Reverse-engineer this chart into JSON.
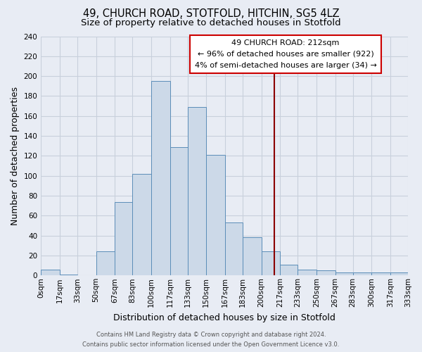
{
  "title": "49, CHURCH ROAD, STOTFOLD, HITCHIN, SG5 4LZ",
  "subtitle": "Size of property relative to detached houses in Stotfold",
  "xlabel": "Distribution of detached houses by size in Stotfold",
  "ylabel": "Number of detached properties",
  "bin_labels": [
    "0sqm",
    "17sqm",
    "33sqm",
    "50sqm",
    "67sqm",
    "83sqm",
    "100sqm",
    "117sqm",
    "133sqm",
    "150sqm",
    "167sqm",
    "183sqm",
    "200sqm",
    "217sqm",
    "233sqm",
    "250sqm",
    "267sqm",
    "283sqm",
    "300sqm",
    "317sqm",
    "333sqm"
  ],
  "bin_edges": [
    0,
    17,
    33,
    50,
    67,
    83,
    100,
    117,
    133,
    150,
    167,
    183,
    200,
    217,
    233,
    250,
    267,
    283,
    300,
    317,
    333
  ],
  "bar_heights": [
    6,
    1,
    0,
    24,
    74,
    102,
    195,
    129,
    169,
    121,
    53,
    38,
    24,
    11,
    6,
    5,
    3,
    3,
    3,
    3
  ],
  "bar_facecolor": "#ccd9e8",
  "bar_edgecolor": "#5b8db8",
  "vline_x": 212,
  "vline_color": "#8b0000",
  "annotation_title": "49 CHURCH ROAD: 212sqm",
  "annotation_line1": "← 96% of detached houses are smaller (922)",
  "annotation_line2": "4% of semi-detached houses are larger (34) →",
  "annotation_box_edgecolor": "#cc0000",
  "annotation_box_facecolor": "#ffffff",
  "ylim": [
    0,
    240
  ],
  "yticks": [
    0,
    20,
    40,
    60,
    80,
    100,
    120,
    140,
    160,
    180,
    200,
    220,
    240
  ],
  "grid_color": "#c8d0dc",
  "background_color": "#e8ecf4",
  "footer_line1": "Contains HM Land Registry data © Crown copyright and database right 2024.",
  "footer_line2": "Contains public sector information licensed under the Open Government Licence v3.0.",
  "title_fontsize": 10.5,
  "subtitle_fontsize": 9.5,
  "axis_label_fontsize": 9,
  "tick_fontsize": 7.5,
  "annotation_fontsize": 8,
  "footer_fontsize": 6
}
